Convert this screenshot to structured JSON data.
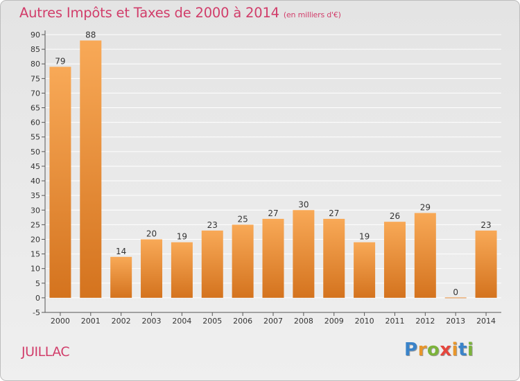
{
  "chart_data": {
    "type": "bar",
    "title": "Autres Impôts et Taxes de 2000 à 2014",
    "subtitle": "(en milliers d'€)",
    "categories": [
      "2000",
      "2001",
      "2002",
      "2003",
      "2004",
      "2005",
      "2006",
      "2007",
      "2008",
      "2009",
      "2010",
      "2011",
      "2012",
      "2013",
      "2014"
    ],
    "values": [
      79,
      88,
      14,
      20,
      19,
      23,
      25,
      27,
      30,
      27,
      19,
      26,
      29,
      0,
      23
    ],
    "ylim": [
      -5,
      90
    ],
    "yticks": [
      -5,
      0,
      5,
      10,
      15,
      20,
      25,
      30,
      35,
      40,
      45,
      50,
      55,
      60,
      65,
      70,
      75,
      80,
      85,
      90
    ],
    "grid": true,
    "bar_color_light": "#f8a957",
    "bar_color_dark": "#d4731e"
  },
  "place_name": "JUILLAC",
  "logo": {
    "text": "Proxiti",
    "letter_colors": [
      "#3a83c9",
      "#e8962b",
      "#7bb33a",
      "#e5463d",
      "#e8962b",
      "#3a83c9",
      "#7bb33a"
    ]
  }
}
